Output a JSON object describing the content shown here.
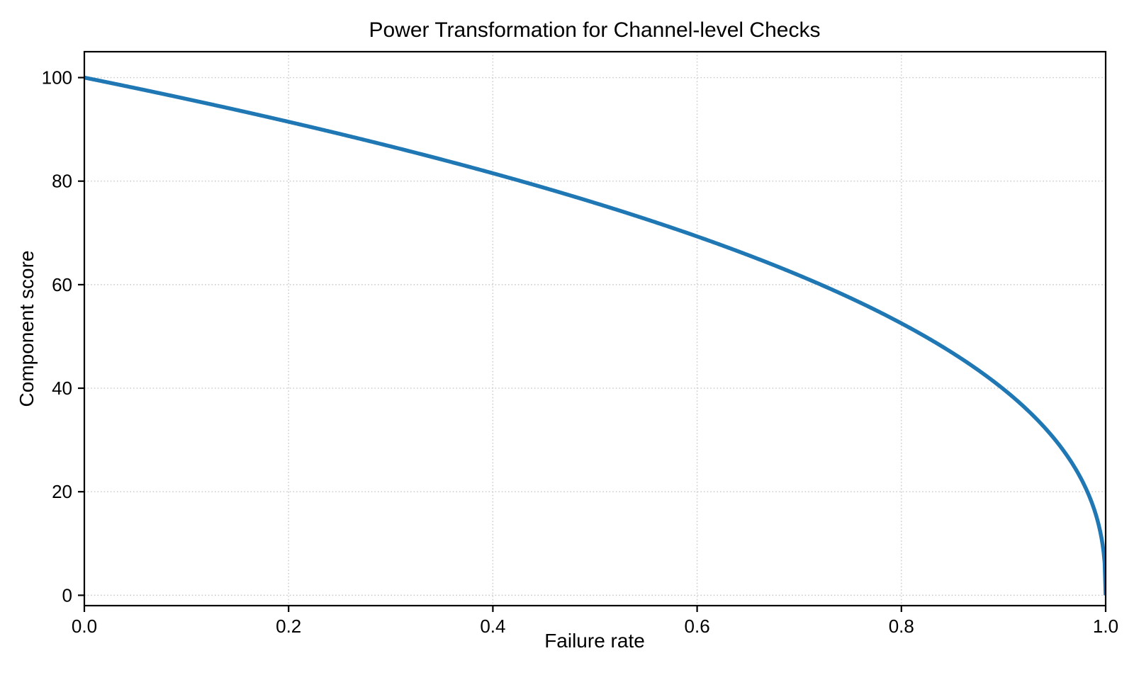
{
  "page": {
    "background": "#ffffff"
  },
  "chart_data": {
    "type": "line",
    "title": "Power Transformation for Channel-level Checks",
    "xlabel": "Failure rate",
    "ylabel": "Component score",
    "xlim": [
      0,
      1
    ],
    "ylim": [
      -2,
      105
    ],
    "xtick_labels": [
      "0.0",
      "0.2",
      "0.4",
      "0.6",
      "0.8",
      "1.0"
    ],
    "xtick_values": [
      0,
      0.2,
      0.4,
      0.6,
      0.8,
      1.0
    ],
    "ytick_labels": [
      "0",
      "20",
      "40",
      "60",
      "80",
      "100"
    ],
    "ytick_values": [
      0,
      20,
      40,
      60,
      80,
      100
    ],
    "grid": {
      "visible": true,
      "style": "dotted",
      "color": "#c9c9c9"
    },
    "legend": {
      "visible": false
    },
    "axes": {
      "spine_color": "#000000",
      "tick_color": "#000000",
      "text_color": "#000000"
    },
    "series": [
      {
        "name": "component-score-curve",
        "color": "#1f77b4",
        "line_width": 5.5,
        "formula": "score = 100 * (1 - failure_rate) ^ 0.4",
        "scale": 100,
        "power": 0.4,
        "points": [
          [
            0.0,
            100.0
          ],
          [
            0.05,
            97.97
          ],
          [
            0.1,
            95.88
          ],
          [
            0.15,
            93.71
          ],
          [
            0.2,
            91.46
          ],
          [
            0.25,
            89.13
          ],
          [
            0.3,
            86.7
          ],
          [
            0.35,
            84.17
          ],
          [
            0.4,
            81.52
          ],
          [
            0.45,
            78.73
          ],
          [
            0.5,
            75.79
          ],
          [
            0.55,
            72.66
          ],
          [
            0.6,
            69.31
          ],
          [
            0.65,
            65.71
          ],
          [
            0.7,
            61.78
          ],
          [
            0.75,
            57.44
          ],
          [
            0.8,
            52.53
          ],
          [
            0.85,
            46.82
          ],
          [
            0.9,
            39.81
          ],
          [
            0.92,
            36.41
          ],
          [
            0.94,
            32.45
          ],
          [
            0.96,
            27.59
          ],
          [
            0.98,
            20.91
          ],
          [
            0.99,
            15.85
          ],
          [
            0.995,
            12.01
          ],
          [
            0.999,
            6.31
          ],
          [
            1.0,
            0.0
          ]
        ]
      }
    ]
  }
}
